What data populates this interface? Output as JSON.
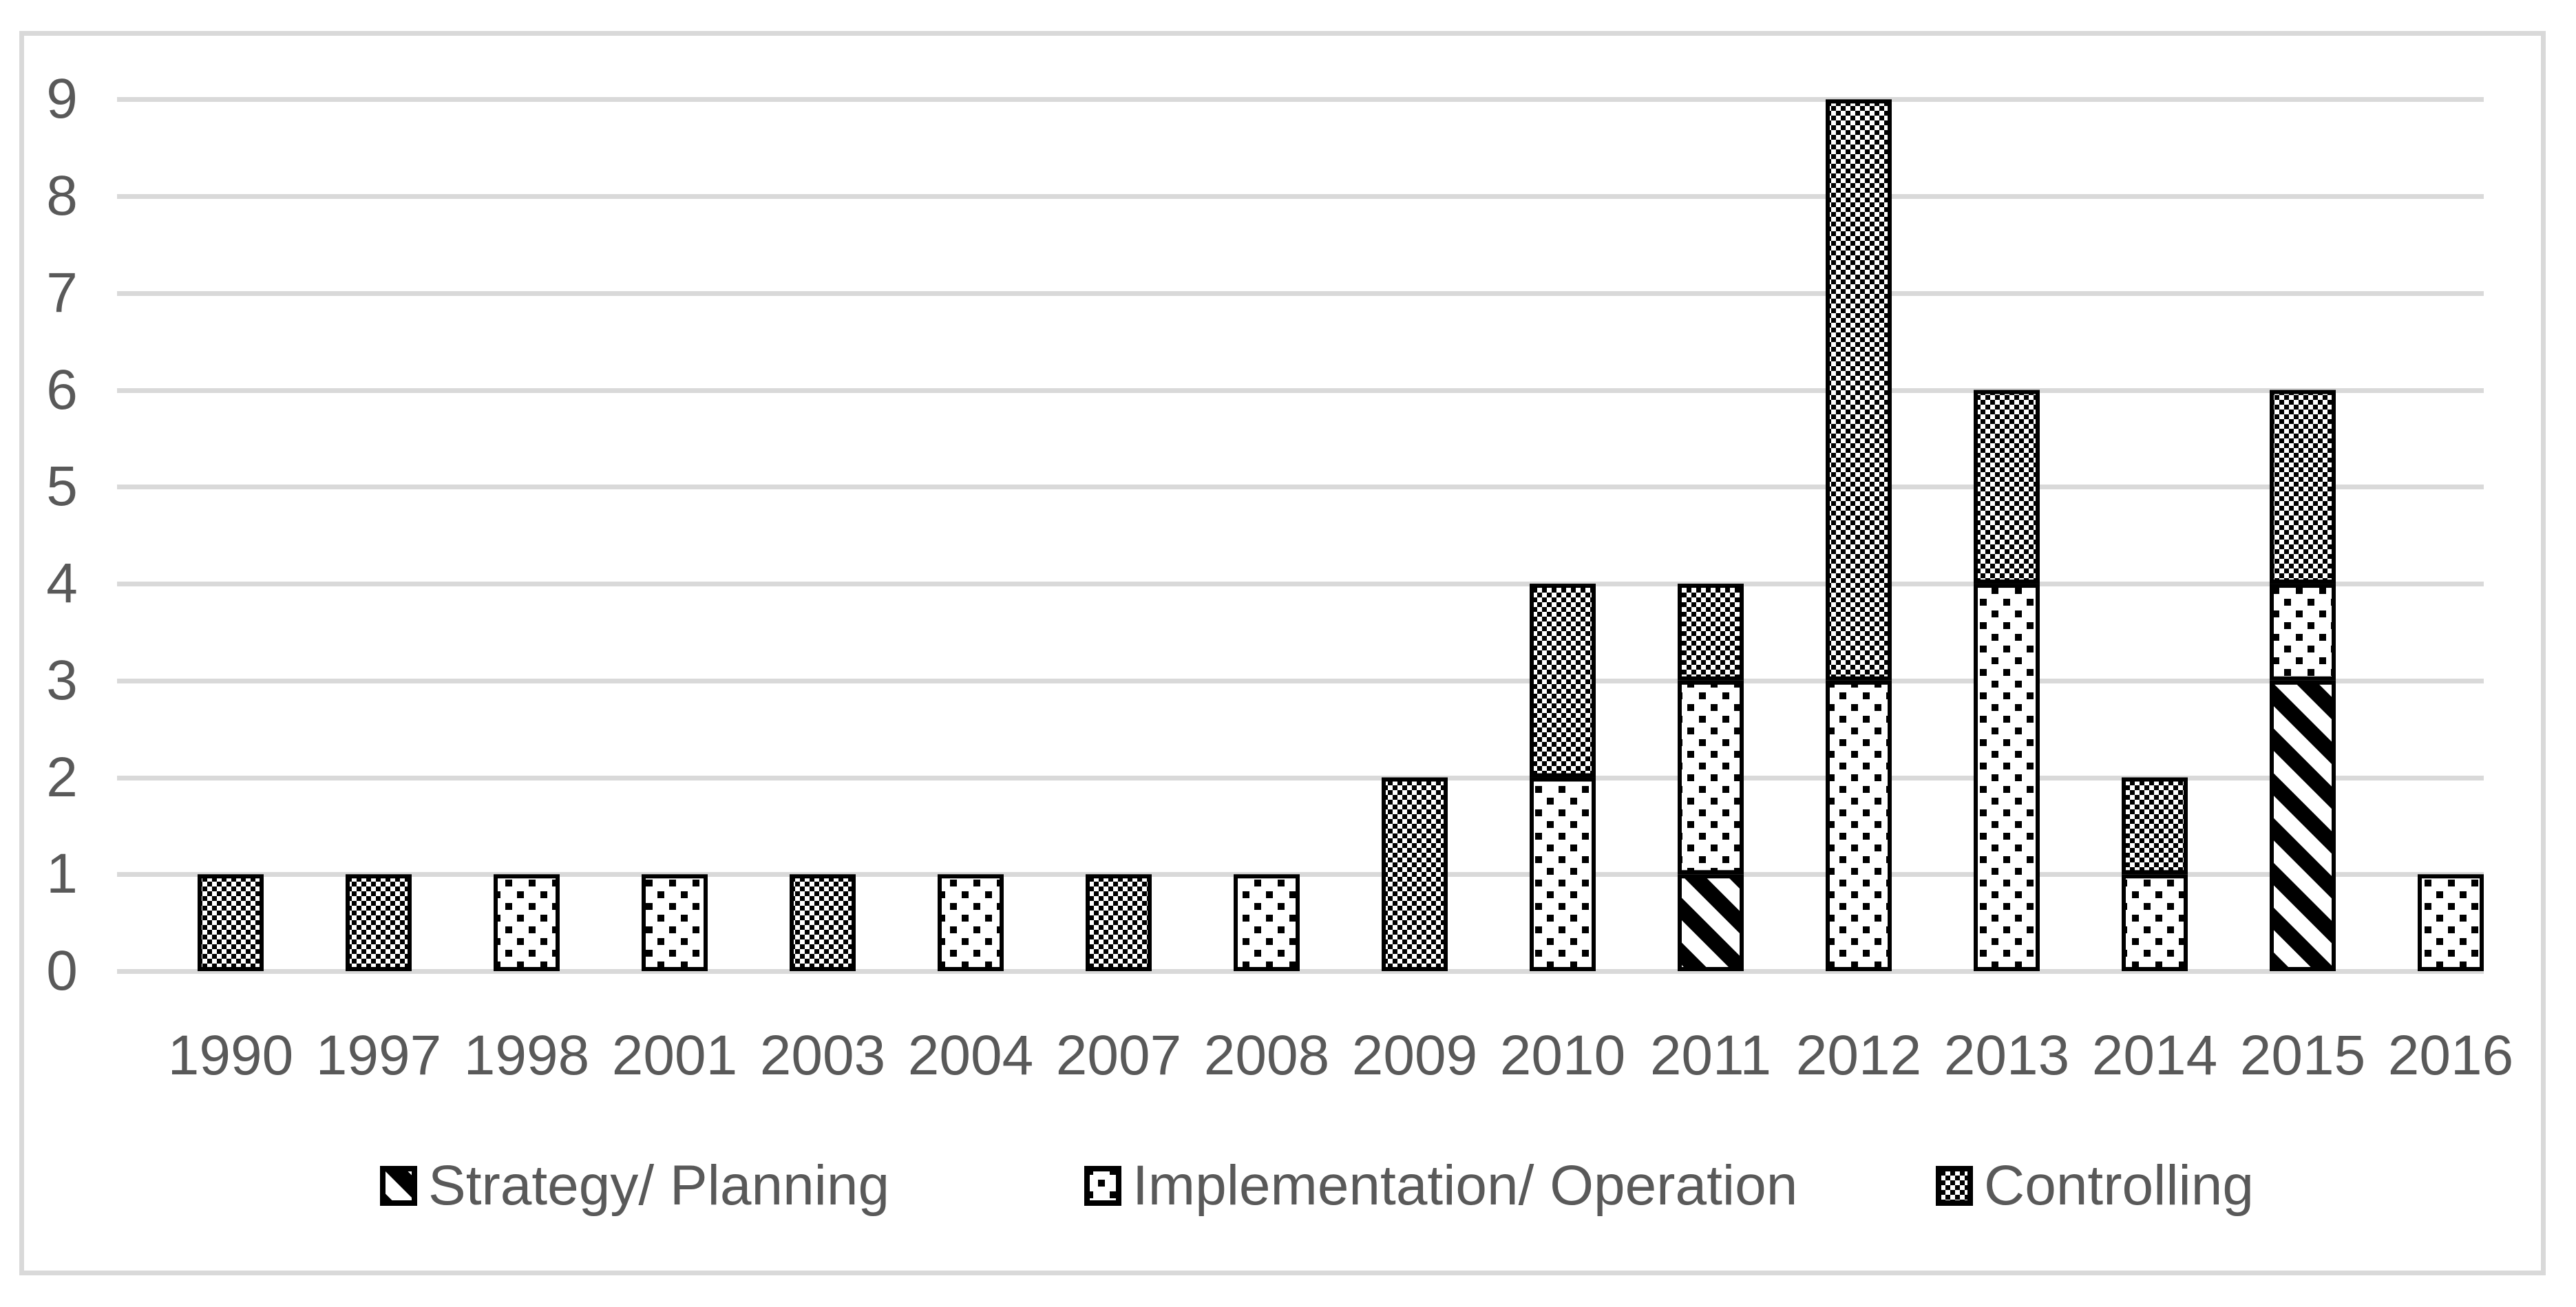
{
  "chart_data": {
    "type": "bar",
    "stacked": true,
    "title": "",
    "xlabel": "",
    "ylabel": "",
    "ylim": [
      0,
      9
    ],
    "yticks": [
      0,
      1,
      2,
      3,
      4,
      5,
      6,
      7,
      8,
      9
    ],
    "grid": true,
    "legend_position": "bottom",
    "categories": [
      "1990",
      "1997",
      "1998",
      "2001",
      "2003",
      "2004",
      "2007",
      "2008",
      "2009",
      "2010",
      "2011",
      "2012",
      "2013",
      "2014",
      "2015",
      "2016"
    ],
    "series": [
      {
        "name": "Strategy/ Planning",
        "pattern": "diagonal-stripes",
        "values": [
          0,
          0,
          0,
          0,
          0,
          0,
          0,
          0,
          0,
          0,
          1,
          0,
          0,
          0,
          3,
          0
        ]
      },
      {
        "name": "Implementation/ Operation",
        "pattern": "dots",
        "values": [
          0,
          0,
          1,
          1,
          0,
          1,
          0,
          1,
          0,
          2,
          2,
          3,
          4,
          1,
          1,
          1
        ]
      },
      {
        "name": "Controlling",
        "pattern": "checkerboard",
        "values": [
          1,
          1,
          0,
          0,
          1,
          0,
          1,
          0,
          2,
          2,
          1,
          6,
          2,
          1,
          2,
          0
        ]
      }
    ],
    "totals": [
      1,
      1,
      1,
      1,
      1,
      1,
      1,
      1,
      2,
      4,
      4,
      9,
      6,
      2,
      6,
      1
    ]
  },
  "colors": {
    "bar_fill_foreground": "#000000",
    "bar_background": "#ffffff",
    "bar_border": "#000000",
    "gridline": "#d9d9d9",
    "figure_border": "#d9d9d9",
    "text": "#595959"
  }
}
